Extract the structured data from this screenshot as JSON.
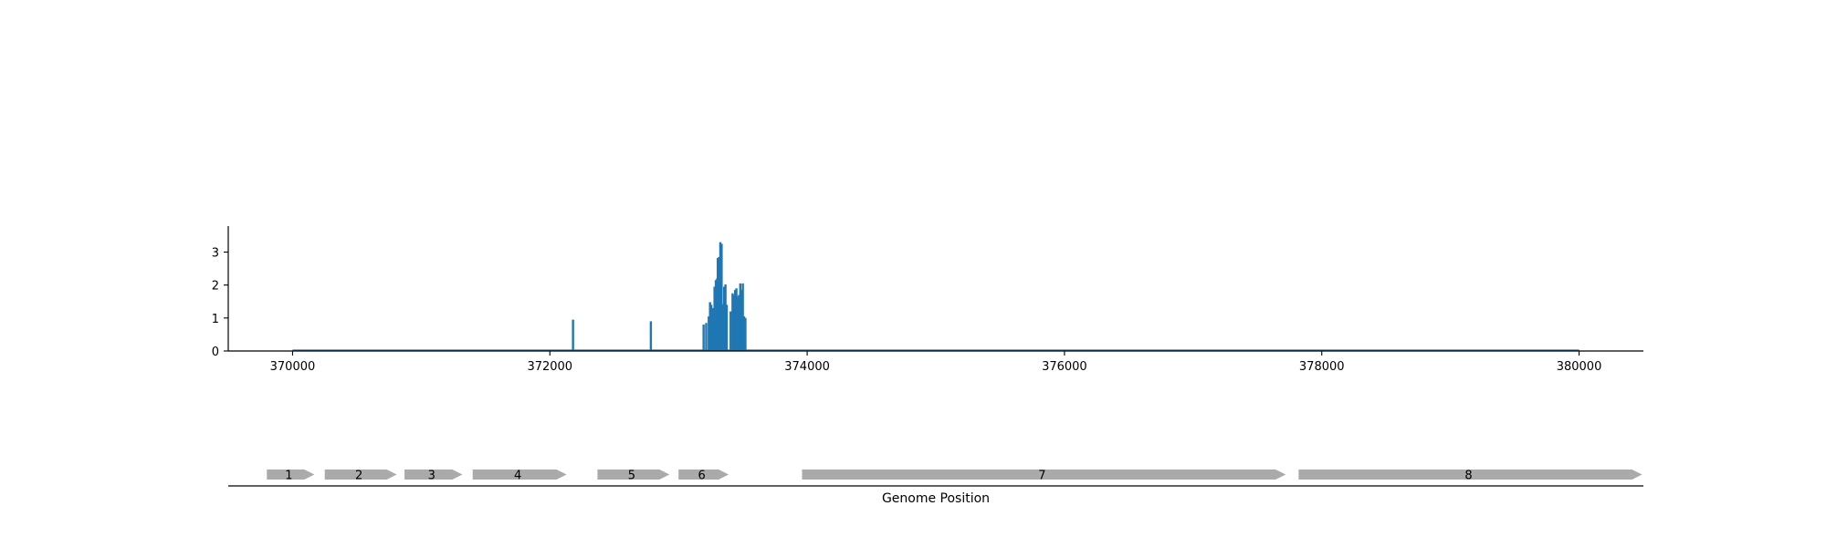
{
  "chart_data": [
    {
      "type": "bar",
      "title": "",
      "xlabel": "",
      "ylabel": "",
      "xlim": [
        369500,
        380500
      ],
      "ylim": [
        0,
        3.65
      ],
      "xticks": [
        370000,
        372000,
        374000,
        376000,
        378000,
        380000
      ],
      "xtick_labels": [
        "370000",
        "372000",
        "374000",
        "376000",
        "378000",
        "380000"
      ],
      "yticks": [
        0,
        1,
        2,
        3
      ],
      "ytick_labels": [
        "0",
        "1",
        "2",
        "3"
      ],
      "color": "#1f77b4",
      "baseline_x_range": [
        370000,
        380000
      ],
      "points": [
        {
          "x": 372180,
          "y": 0.95
        },
        {
          "x": 372785,
          "y": 0.9
        },
        {
          "x": 373195,
          "y": 0.8
        },
        {
          "x": 373215,
          "y": 0.85
        },
        {
          "x": 373235,
          "y": 1.05
        },
        {
          "x": 373245,
          "y": 1.48
        },
        {
          "x": 373255,
          "y": 1.4
        },
        {
          "x": 373265,
          "y": 1.3
        },
        {
          "x": 373280,
          "y": 1.95
        },
        {
          "x": 373290,
          "y": 2.15
        },
        {
          "x": 373300,
          "y": 2.2
        },
        {
          "x": 373305,
          "y": 2.82
        },
        {
          "x": 373315,
          "y": 2.85
        },
        {
          "x": 373325,
          "y": 3.3
        },
        {
          "x": 373335,
          "y": 3.25
        },
        {
          "x": 373345,
          "y": 1.42
        },
        {
          "x": 373355,
          "y": 1.95
        },
        {
          "x": 373365,
          "y": 2.02
        },
        {
          "x": 373375,
          "y": 1.4
        },
        {
          "x": 373405,
          "y": 1.2
        },
        {
          "x": 373420,
          "y": 1.75
        },
        {
          "x": 373430,
          "y": 1.7
        },
        {
          "x": 373440,
          "y": 1.85
        },
        {
          "x": 373450,
          "y": 1.9
        },
        {
          "x": 373460,
          "y": 1.65
        },
        {
          "x": 373470,
          "y": 1.7
        },
        {
          "x": 373480,
          "y": 2.05
        },
        {
          "x": 373490,
          "y": 1.85
        },
        {
          "x": 373500,
          "y": 2.05
        },
        {
          "x": 373510,
          "y": 1.05
        },
        {
          "x": 373520,
          "y": 1.0
        }
      ]
    },
    {
      "type": "gene-track",
      "xlabel": "Genome Position",
      "color": "#aaaaaa",
      "genes": [
        {
          "label": "1",
          "start": 369800,
          "end": 370170
        },
        {
          "label": "2",
          "start": 370250,
          "end": 370810
        },
        {
          "label": "3",
          "start": 370870,
          "end": 371320
        },
        {
          "label": "4",
          "start": 371400,
          "end": 372130
        },
        {
          "label": "5",
          "start": 372370,
          "end": 372930
        },
        {
          "label": "6",
          "start": 373000,
          "end": 373390
        },
        {
          "label": "7",
          "start": 373960,
          "end": 377720
        },
        {
          "label": "8",
          "start": 377820,
          "end": 380490
        }
      ]
    }
  ]
}
